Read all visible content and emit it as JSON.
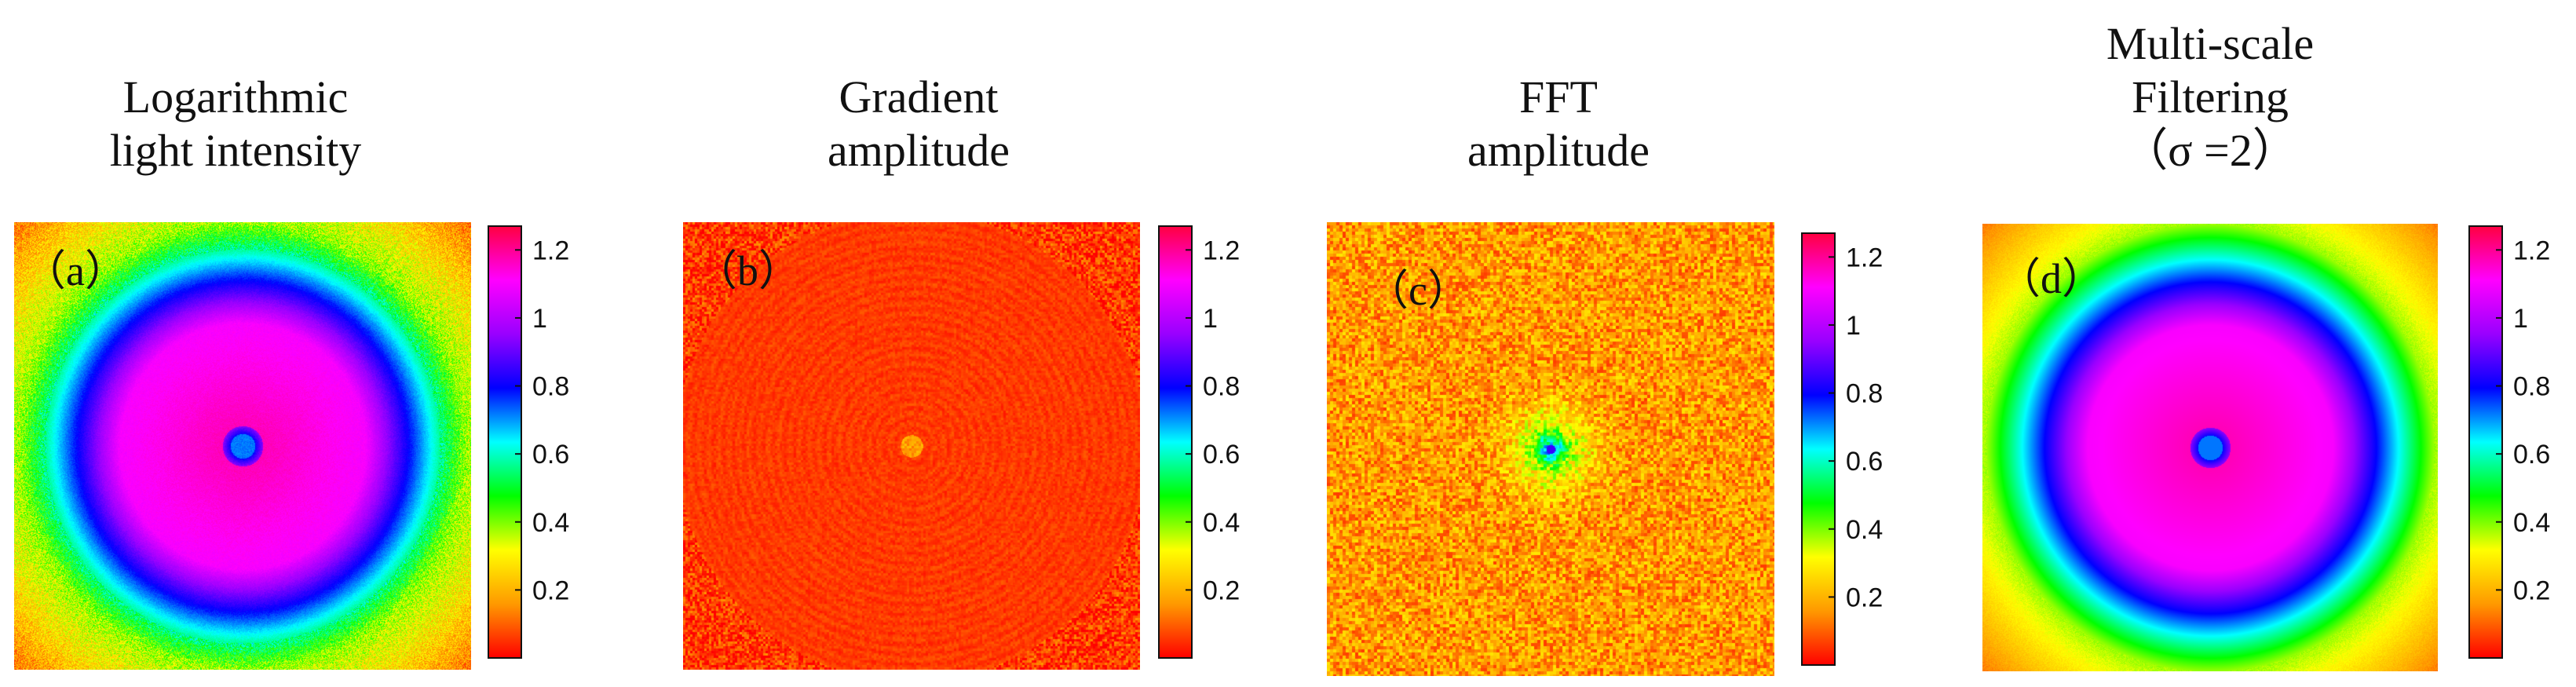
{
  "chart_data": [
    {
      "type": "heatmap",
      "panel_label": "（a）",
      "title_lines": [
        "Logarithmic",
        "light intensity"
      ],
      "pattern": "ring",
      "colorbar_ticks": [
        "1.2",
        "1",
        "0.8",
        "0.6",
        "0.4",
        "0.2"
      ],
      "colorbar_range": [
        0,
        1.27
      ]
    },
    {
      "type": "heatmap",
      "panel_label": "（b）",
      "title_lines": [
        "Gradient",
        "amplitude"
      ],
      "pattern": "flat",
      "colorbar_ticks": [
        "1.2",
        "1",
        "0.8",
        "0.6",
        "0.4",
        "0.2"
      ],
      "colorbar_range": [
        0,
        1.27
      ]
    },
    {
      "type": "heatmap",
      "panel_label": "（c）",
      "title_lines": [
        "FFT",
        "amplitude"
      ],
      "pattern": "noise",
      "colorbar_ticks": [
        "1.2",
        "1",
        "0.8",
        "0.6",
        "0.4",
        "0.2"
      ],
      "colorbar_range": [
        0,
        1.27
      ]
    },
    {
      "type": "heatmap",
      "panel_label": "（d）",
      "title_lines": [
        "Multi-scale",
        "Filtering",
        "（σ =2）"
      ],
      "pattern": "smooth-ring",
      "colorbar_ticks": [
        "1.2",
        "1",
        "0.8",
        "0.6",
        "0.4",
        "0.2"
      ],
      "colorbar_range": [
        0,
        1.27
      ]
    }
  ],
  "colormap": [
    "#ff0000",
    "#ff9900",
    "#ffff00",
    "#00ff00",
    "#00ffff",
    "#0000ff",
    "#9900ff",
    "#ff00ff",
    "#ff0040"
  ]
}
